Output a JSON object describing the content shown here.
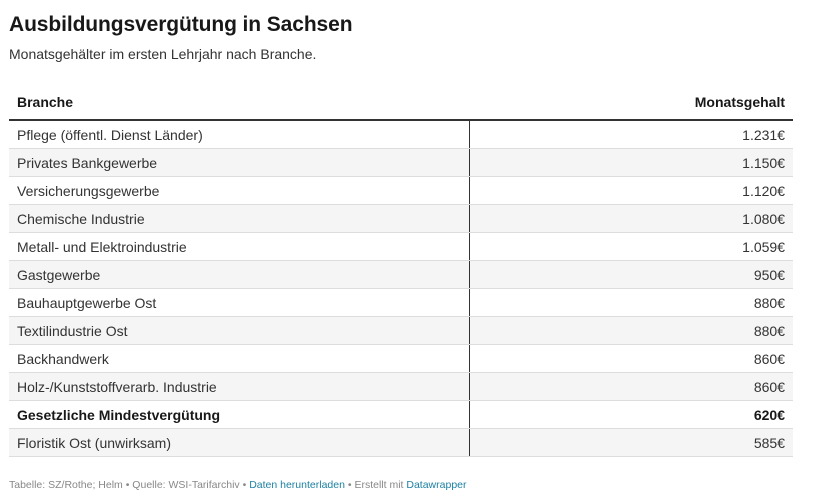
{
  "header": {
    "title": "Ausbildungsvergütung in Sachsen",
    "subtitle": "Monatsgehälter im ersten Lehrjahr nach Branche."
  },
  "table": {
    "columns": [
      "Branche",
      "Monatsgehalt"
    ],
    "rows": [
      {
        "branche": "Pflege (öffentl. Dienst Länder)",
        "gehalt": "1.231€",
        "bold": false
      },
      {
        "branche": "Privates Bankgewerbe",
        "gehalt": "1.150€",
        "bold": false
      },
      {
        "branche": "Versicherungsgewerbe",
        "gehalt": "1.120€",
        "bold": false
      },
      {
        "branche": "Chemische Industrie",
        "gehalt": "1.080€",
        "bold": false
      },
      {
        "branche": "Metall- und Elektroindustrie",
        "gehalt": "1.059€",
        "bold": false
      },
      {
        "branche": "Gastgewerbe",
        "gehalt": "950€",
        "bold": false
      },
      {
        "branche": "Bauhauptgewerbe Ost",
        "gehalt": "880€",
        "bold": false
      },
      {
        "branche": "Textilindustrie Ost",
        "gehalt": "880€",
        "bold": false
      },
      {
        "branche": "Backhandwerk",
        "gehalt": "860€",
        "bold": false
      },
      {
        "branche": "Holz-/Kunststoffverarb. Industrie",
        "gehalt": "860€",
        "bold": false
      },
      {
        "branche": "Gesetzliche Mindestvergütung",
        "gehalt": "620€",
        "bold": true
      },
      {
        "branche": "Floristik Ost (unwirksam)",
        "gehalt": "585€",
        "bold": false
      }
    ]
  },
  "chart_data": {
    "type": "table",
    "title": "Ausbildungsvergütung in Sachsen",
    "subtitle": "Monatsgehälter im ersten Lehrjahr nach Branche.",
    "columns": [
      "Branche",
      "Monatsgehalt"
    ],
    "categories": [
      "Pflege (öffentl. Dienst Länder)",
      "Privates Bankgewerbe",
      "Versicherungsgewerbe",
      "Chemische Industrie",
      "Metall- und Elektroindustrie",
      "Gastgewerbe",
      "Bauhauptgewerbe Ost",
      "Textilindustrie Ost",
      "Backhandwerk",
      "Holz-/Kunststoffverarb. Industrie",
      "Gesetzliche Mindestvergütung",
      "Floristik Ost (unwirksam)"
    ],
    "values": [
      1231,
      1150,
      1120,
      1080,
      1059,
      950,
      880,
      880,
      860,
      860,
      620,
      585
    ],
    "unit": "€"
  },
  "footer": {
    "source_text": "Tabelle: SZ/Rothe; Helm • Quelle: WSI-Tarifarchiv • ",
    "download_label": "Daten herunterladen",
    "made_with_text": " • Erstellt mit ",
    "datawrapper_label": "Datawrapper"
  },
  "colors": {
    "link": "#1d81a2",
    "header_rule": "#333333",
    "row_alt": "#f5f5f5"
  }
}
